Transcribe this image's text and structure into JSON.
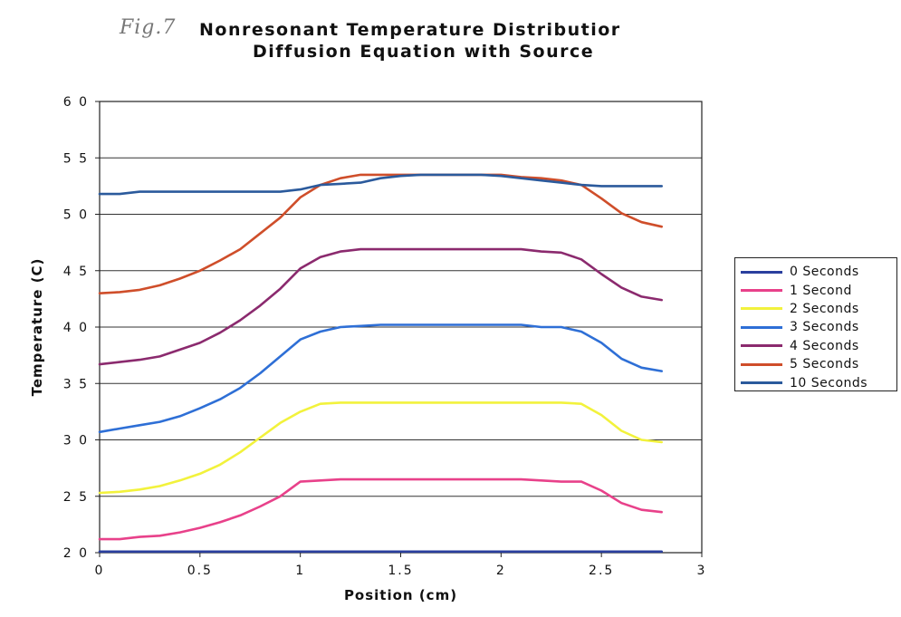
{
  "figure": {
    "fig_label": "Fig.7",
    "title_line1": "Nonresonant Temperature Distributior",
    "title_line2": "Diffusion Equation with Source"
  },
  "chart_data": {
    "type": "line",
    "title": "Nonresonant Temperature Distributior Diffusion Equation with Source",
    "xlabel": "Position (cm)",
    "ylabel": "Temperature (C)",
    "xlim": [
      0,
      3
    ],
    "ylim": [
      20,
      60
    ],
    "xticks": [
      "0",
      "0.5",
      "1",
      "1.5",
      "2",
      "2.5",
      "3"
    ],
    "yticks": [
      "2 0",
      "2 5",
      "3 0",
      "3 5",
      "4 0",
      "4 5",
      "5 0",
      "5 5",
      "6 0"
    ],
    "grid": "horizontal",
    "legend_position": "right",
    "x": [
      0,
      0.1,
      0.2,
      0.3,
      0.4,
      0.5,
      0.6,
      0.7,
      0.8,
      0.9,
      1.0,
      1.1,
      1.2,
      1.3,
      1.4,
      1.5,
      1.6,
      1.7,
      1.8,
      1.9,
      2.0,
      2.1,
      2.2,
      2.3,
      2.4,
      2.5,
      2.6,
      2.7,
      2.8
    ],
    "series": [
      {
        "name": "0 Seconds",
        "color": "#2a3f9e",
        "values": [
          20.1,
          20.1,
          20.1,
          20.1,
          20.1,
          20.1,
          20.1,
          20.1,
          20.1,
          20.1,
          20.1,
          20.1,
          20.1,
          20.1,
          20.1,
          20.1,
          20.1,
          20.1,
          20.1,
          20.1,
          20.1,
          20.1,
          20.1,
          20.1,
          20.1,
          20.1,
          20.1,
          20.1,
          20.1
        ]
      },
      {
        "name": "1 Second",
        "color": "#e8418a",
        "values": [
          21.2,
          21.2,
          21.4,
          21.5,
          21.8,
          22.2,
          22.7,
          23.3,
          24.1,
          25.0,
          26.3,
          26.4,
          26.5,
          26.5,
          26.5,
          26.5,
          26.5,
          26.5,
          26.5,
          26.5,
          26.5,
          26.5,
          26.4,
          26.3,
          26.3,
          25.5,
          24.4,
          23.8,
          23.6
        ]
      },
      {
        "name": "2 Seconds",
        "color": "#f2f23c",
        "values": [
          25.3,
          25.4,
          25.6,
          25.9,
          26.4,
          27.0,
          27.8,
          28.9,
          30.2,
          31.5,
          32.5,
          33.2,
          33.3,
          33.3,
          33.3,
          33.3,
          33.3,
          33.3,
          33.3,
          33.3,
          33.3,
          33.3,
          33.3,
          33.3,
          33.2,
          32.2,
          30.8,
          30.0,
          29.8
        ]
      },
      {
        "name": "3 Seconds",
        "color": "#2e6fd6",
        "values": [
          30.7,
          31.0,
          31.3,
          31.6,
          32.1,
          32.8,
          33.6,
          34.6,
          35.9,
          37.4,
          38.9,
          39.6,
          40.0,
          40.1,
          40.2,
          40.2,
          40.2,
          40.2,
          40.2,
          40.2,
          40.2,
          40.2,
          40.0,
          40.0,
          39.6,
          38.6,
          37.2,
          36.4,
          36.1
        ]
      },
      {
        "name": "4 Seconds",
        "color": "#8b2a6e",
        "values": [
          36.7,
          36.9,
          37.1,
          37.4,
          38.0,
          38.6,
          39.5,
          40.6,
          41.9,
          43.4,
          45.2,
          46.2,
          46.7,
          46.9,
          46.9,
          46.9,
          46.9,
          46.9,
          46.9,
          46.9,
          46.9,
          46.9,
          46.7,
          46.6,
          46.0,
          44.7,
          43.5,
          42.7,
          42.4
        ]
      },
      {
        "name": "5 Seconds",
        "color": "#cf4e2a",
        "values": [
          43.0,
          43.1,
          43.3,
          43.7,
          44.3,
          45.0,
          45.9,
          46.9,
          48.3,
          49.7,
          51.5,
          52.6,
          53.2,
          53.5,
          53.5,
          53.5,
          53.5,
          53.5,
          53.5,
          53.5,
          53.5,
          53.3,
          53.2,
          53.0,
          52.6,
          51.4,
          50.1,
          49.3,
          48.9
        ]
      },
      {
        "name": "10 Seconds",
        "color": "#2b5a9c",
        "values": [
          51.8,
          51.8,
          52.0,
          52.0,
          52.0,
          52.0,
          52.0,
          52.0,
          52.0,
          52.0,
          52.2,
          52.6,
          52.7,
          52.8,
          53.2,
          53.4,
          53.5,
          53.5,
          53.5,
          53.5,
          53.4,
          53.2,
          53.0,
          52.8,
          52.6,
          52.5,
          52.5,
          52.5,
          52.5
        ]
      }
    ]
  }
}
